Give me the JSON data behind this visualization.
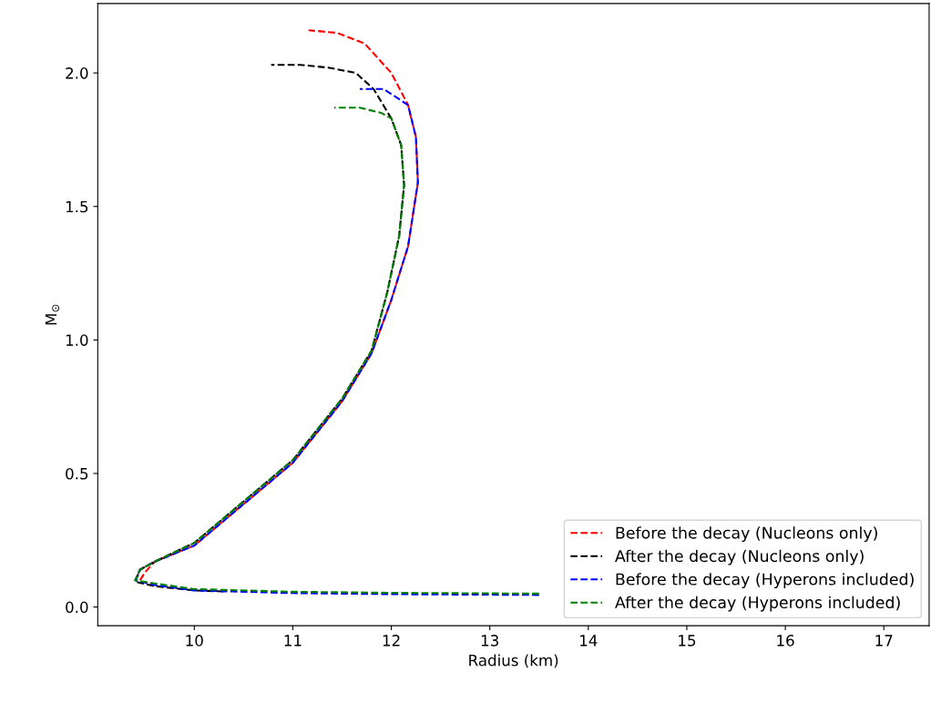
{
  "chart_data": {
    "type": "line",
    "xlabel": "Radius (km)",
    "ylabel": "M$_{⊙}$",
    "xlim": [
      9.02,
      17.46
    ],
    "ylim": [
      -0.07,
      2.26
    ],
    "xticks": [
      10,
      11,
      12,
      13,
      14,
      15,
      16,
      17
    ],
    "yticks": [
      {
        "value": 0,
        "label": "0.0"
      },
      {
        "value": 0.5,
        "label": "0.5"
      },
      {
        "value": 1,
        "label": "1.0"
      },
      {
        "value": 1.5,
        "label": "1.5"
      },
      {
        "value": 2,
        "label": "2.0"
      }
    ],
    "legend": "lower right",
    "line_style": "dashed",
    "marker": "none",
    "grid": false,
    "series": [
      {
        "name": "Before the decay (Nucleons only)",
        "color": "#ff0000",
        "x": [
          9.45,
          9.5,
          9.6,
          10.0,
          11.0,
          11.5,
          11.8,
          12.0,
          12.17,
          12.27,
          12.25,
          12.17,
          12.0,
          11.73,
          11.45,
          11.16
        ],
        "values": [
          0.1,
          0.13,
          0.17,
          0.23,
          0.54,
          0.77,
          0.95,
          1.15,
          1.35,
          1.59,
          1.76,
          1.88,
          2.0,
          2.11,
          2.15,
          2.16
        ]
      },
      {
        "name": "After the decay (Nucleons only)",
        "color": "#000000",
        "x": [
          10.3,
          10.0,
          9.6,
          9.4,
          9.45,
          9.6,
          10.0,
          11.0,
          11.5,
          11.8,
          11.96,
          12.08,
          12.13,
          12.1,
          12.0,
          11.82,
          11.64,
          11.36,
          11.08,
          10.78
        ],
        "values": [
          0.058,
          0.062,
          0.078,
          0.095,
          0.14,
          0.17,
          0.24,
          0.55,
          0.78,
          0.96,
          1.18,
          1.39,
          1.58,
          1.73,
          1.83,
          1.94,
          2.0,
          2.02,
          2.03,
          2.03
        ]
      },
      {
        "name": "Before the decay (Hyperons included)",
        "color": "#0000ff",
        "x": [
          13.5,
          12.0,
          11.0,
          10.0,
          9.6,
          9.4,
          9.45,
          9.6,
          10.0,
          11.0,
          11.5,
          11.8,
          12.0,
          12.17,
          12.27,
          12.25,
          12.17,
          11.92,
          11.68
        ],
        "values": [
          0.045,
          0.048,
          0.052,
          0.062,
          0.082,
          0.1,
          0.14,
          0.17,
          0.23,
          0.54,
          0.77,
          0.95,
          1.15,
          1.35,
          1.59,
          1.76,
          1.88,
          1.94,
          1.94
        ]
      },
      {
        "name": "After the decay (Hyperons included)",
        "color": "#008000",
        "x": [
          13.5,
          12.0,
          11.0,
          10.0,
          9.6,
          9.4,
          9.45,
          9.6,
          10.0,
          11.0,
          11.5,
          11.8,
          11.96,
          12.08,
          12.13,
          12.1,
          12.0,
          11.9,
          11.68,
          11.42
        ],
        "values": [
          0.05,
          0.053,
          0.057,
          0.067,
          0.088,
          0.1,
          0.14,
          0.17,
          0.24,
          0.55,
          0.78,
          0.96,
          1.18,
          1.39,
          1.58,
          1.73,
          1.83,
          1.85,
          1.87,
          1.87
        ]
      }
    ]
  }
}
